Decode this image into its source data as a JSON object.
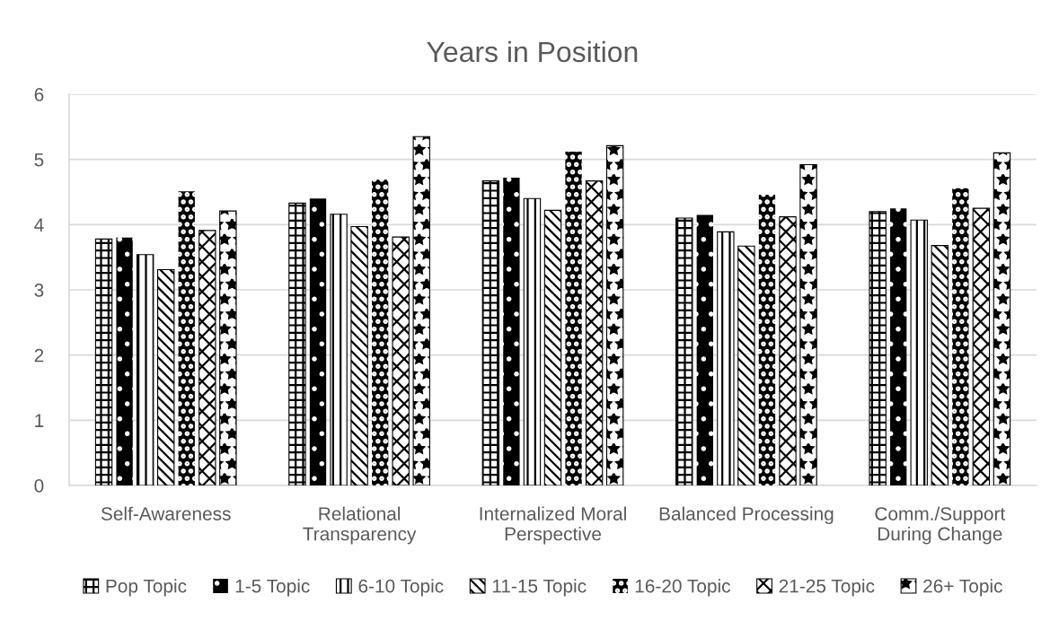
{
  "chart_data": {
    "type": "bar",
    "title": "Years in Position",
    "categories": [
      "Self-Awareness",
      "Relational Transparency",
      "Internalized Moral Perspective",
      "Balanced Processing",
      "Comm./Support During Change"
    ],
    "series": [
      {
        "name": "Pop Topic",
        "color": "#000000",
        "values": [
          3.78,
          4.33,
          4.67,
          4.1,
          4.2
        ]
      },
      {
        "name": "1-5 Topic",
        "color": "#000000",
        "values": [
          3.8,
          4.4,
          4.72,
          4.15,
          4.25
        ]
      },
      {
        "name": "6-10 Topic",
        "color": "#000000",
        "values": [
          3.54,
          4.16,
          4.4,
          3.89,
          4.07
        ]
      },
      {
        "name": "11-15 Topic",
        "color": "#000000",
        "values": [
          3.31,
          3.97,
          4.22,
          3.67,
          3.68
        ]
      },
      {
        "name": "16-20 Topic",
        "color": "#000000",
        "values": [
          4.51,
          4.69,
          5.12,
          4.46,
          4.56
        ]
      },
      {
        "name": "21-25 Topic",
        "color": "#000000",
        "values": [
          3.91,
          3.81,
          4.67,
          4.12,
          4.25
        ]
      },
      {
        "name": "26+ Topic",
        "color": "#000000",
        "values": [
          4.21,
          5.35,
          5.21,
          4.92,
          5.1
        ]
      }
    ],
    "ylim": [
      0,
      6
    ],
    "yticks": [
      0,
      1,
      2,
      3,
      4,
      5,
      6
    ],
    "grid": "y",
    "legend": "bottom"
  }
}
